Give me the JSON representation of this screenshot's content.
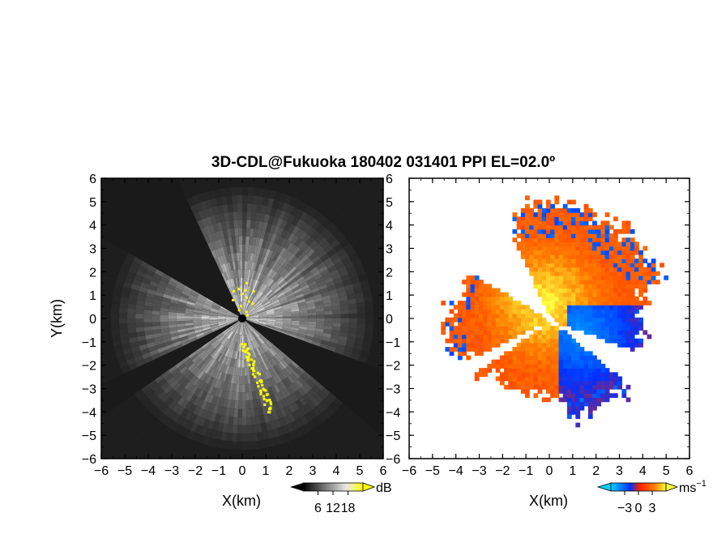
{
  "title": "3D-CDL@Fukuoka 180402 031401 PPI EL=02.0º",
  "chart_data": [
    {
      "type": "heatmap",
      "panel": "left",
      "field": "backscatter intensity",
      "xlabel": "X(km)",
      "ylabel": "Y(km)",
      "xlim": [
        -6,
        6
      ],
      "ylim": [
        -6,
        6
      ],
      "xticks": [
        "−6",
        "−5",
        "−4",
        "−3",
        "−2",
        "−1",
        "0",
        "1",
        "2",
        "3",
        "4",
        "5",
        "6"
      ],
      "yticks": [
        "6",
        "5",
        "4",
        "3",
        "2",
        "1",
        "0",
        "−1",
        "−2",
        "−3",
        "−4",
        "−5",
        "−6"
      ],
      "colorbar": {
        "unit": "dB",
        "ticks": [
          "6",
          "12",
          "18"
        ],
        "range": [
          0,
          24
        ],
        "colors": [
          "#000000",
          "#ffffff",
          "#ffff00"
        ]
      },
      "features": {
        "radar_center": [
          0,
          0
        ],
        "blocked_sectors_deg": [
          [
            115,
            150
          ],
          [
            205,
            215
          ],
          [
            320,
            340
          ]
        ],
        "yellow_echo_line_km": [
          [
            0,
            -1
          ],
          [
            1.2,
            -4.0
          ]
        ]
      }
    },
    {
      "type": "heatmap",
      "panel": "right",
      "field": "Doppler velocity",
      "xlabel": "X(km)",
      "xlim": [
        -6,
        6
      ],
      "ylim": [
        -6,
        6
      ],
      "xticks": [
        "−6",
        "−5",
        "−4",
        "−3",
        "−2",
        "−1",
        "0",
        "1",
        "2",
        "3",
        "4",
        "5",
        "6"
      ],
      "colorbar": {
        "unit": "ms",
        "unit_exp": "−1",
        "ticks": [
          "−3",
          "0",
          "3"
        ],
        "range": [
          -6,
          6
        ],
        "colors": [
          "#00c8ff",
          "#0030ff",
          "#ff3000",
          "#ffff00"
        ]
      },
      "features": {
        "approaching_core_km": [
          1.3,
          -0.5
        ],
        "receding_core_km": [
          -0.3,
          0.8
        ]
      }
    }
  ]
}
